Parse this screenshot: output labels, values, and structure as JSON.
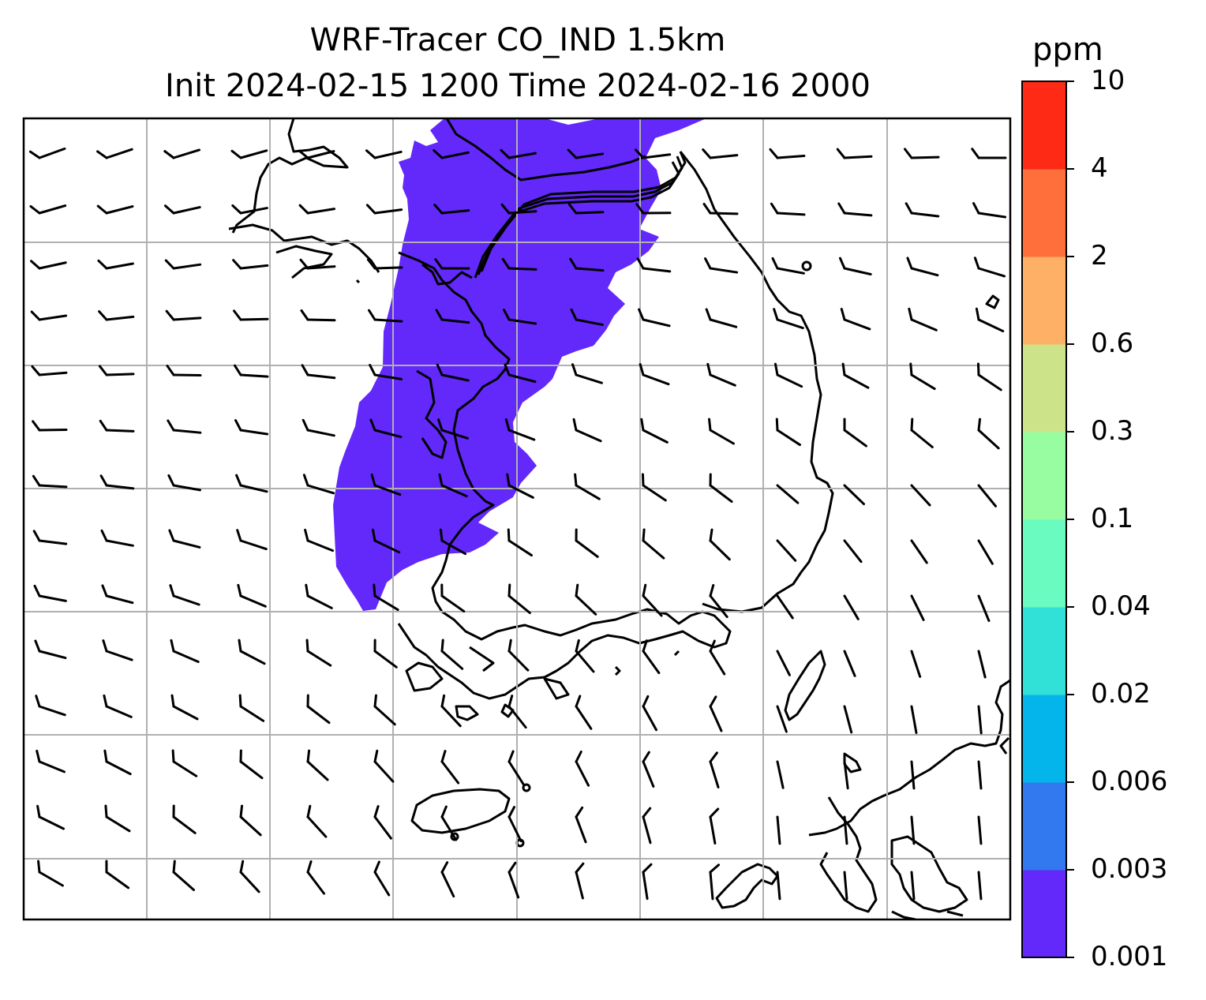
{
  "title": {
    "line1": "WRF-Tracer CO_IND 1.5km",
    "line2": "Init 2024-02-15 1200 Time 2024-02-16 2000"
  },
  "colorbar": {
    "unit": "ppm",
    "levels": [
      "0.001",
      "0.003",
      "0.006",
      "0.02",
      "0.04",
      "0.1",
      "0.3",
      "0.6",
      "2",
      "4",
      "10"
    ],
    "colors": [
      "#6329fb",
      "#3278ee",
      "#04b5ec",
      "#31e0d6",
      "#69fbc0",
      "#98fca0",
      "#cde38a",
      "#fdb066",
      "#fe6f3b",
      "#fe2a16"
    ]
  },
  "map": {
    "plume_color": "#6329fb",
    "plume_level": "0.001–0.003 ppm",
    "grid": true,
    "wind_barbs": true,
    "coastlines": true
  }
}
